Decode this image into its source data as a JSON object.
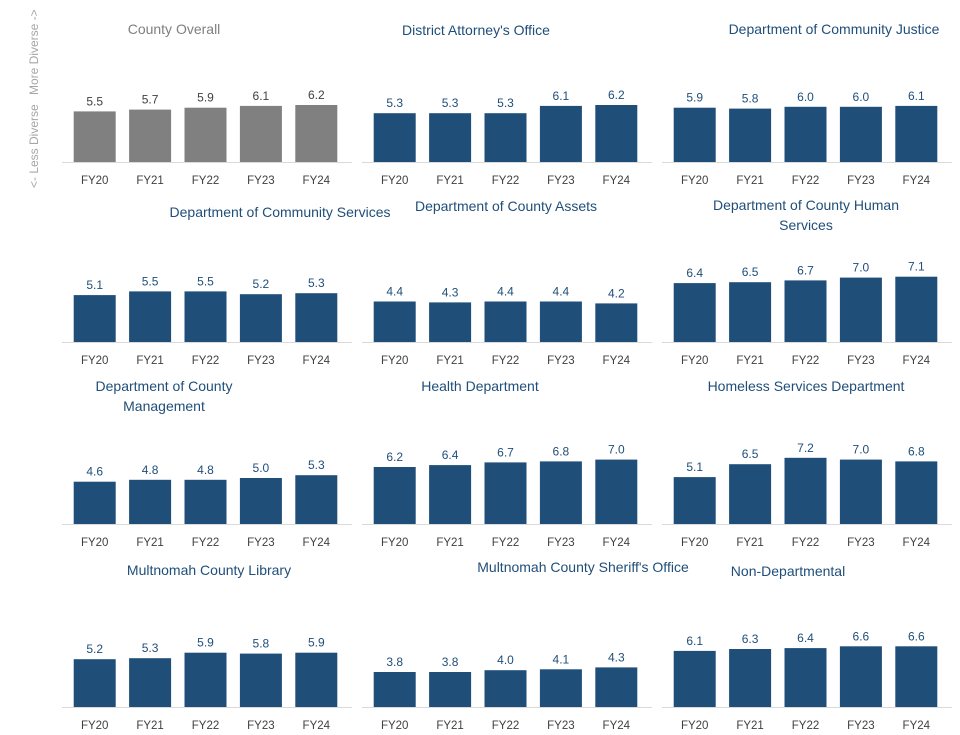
{
  "axis_note": {
    "more": "More Diverse ->",
    "less": "<- Less Diverse"
  },
  "colors": {
    "overall_bar": "#808080",
    "department_bar": "#1f4e79",
    "label_text": "#1f4e79",
    "overall_title": "#7f7f7f",
    "axis_text": "#404040",
    "baseline": "#d9d9d9",
    "side_note": "#a6a6a6"
  },
  "chart_data": [
    {
      "type": "bar",
      "title": "County Overall",
      "categories": [
        "FY20",
        "FY21",
        "FY22",
        "FY23",
        "FY24"
      ],
      "values": [
        5.5,
        5.7,
        5.9,
        6.1,
        6.2
      ],
      "ylim": [
        0,
        8
      ]
    },
    {
      "type": "bar",
      "title": "District Attorney's Office",
      "categories": [
        "FY20",
        "FY21",
        "FY22",
        "FY23",
        "FY24"
      ],
      "values": [
        5.3,
        5.3,
        5.3,
        6.1,
        6.2
      ],
      "ylim": [
        0,
        8
      ]
    },
    {
      "type": "bar",
      "title": "Department of Community Justice",
      "categories": [
        "FY20",
        "FY21",
        "FY22",
        "FY23",
        "FY24"
      ],
      "values": [
        5.9,
        5.8,
        6.0,
        6.0,
        6.1
      ],
      "ylim": [
        0,
        8
      ]
    },
    {
      "type": "bar",
      "title": "Department of Community Services",
      "categories": [
        "FY20",
        "FY21",
        "FY22",
        "FY23",
        "FY24"
      ],
      "values": [
        5.1,
        5.5,
        5.5,
        5.2,
        5.3
      ],
      "ylim": [
        0,
        8
      ]
    },
    {
      "type": "bar",
      "title": "Department of County Assets",
      "categories": [
        "FY20",
        "FY21",
        "FY22",
        "FY23",
        "FY24"
      ],
      "values": [
        4.4,
        4.3,
        4.4,
        4.4,
        4.2
      ],
      "ylim": [
        0,
        8
      ]
    },
    {
      "type": "bar",
      "title": "Department of County Human Services",
      "categories": [
        "FY20",
        "FY21",
        "FY22",
        "FY23",
        "FY24"
      ],
      "values": [
        6.4,
        6.5,
        6.7,
        7.0,
        7.1
      ],
      "ylim": [
        0,
        8
      ]
    },
    {
      "type": "bar",
      "title": "Department of County Management",
      "categories": [
        "FY20",
        "FY21",
        "FY22",
        "FY23",
        "FY24"
      ],
      "values": [
        4.6,
        4.8,
        4.8,
        5.0,
        5.3
      ],
      "ylim": [
        0,
        8
      ]
    },
    {
      "type": "bar",
      "title": "Health Department",
      "categories": [
        "FY20",
        "FY21",
        "FY22",
        "FY23",
        "FY24"
      ],
      "values": [
        6.2,
        6.4,
        6.7,
        6.8,
        7.0
      ],
      "ylim": [
        0,
        8
      ]
    },
    {
      "type": "bar",
      "title": "Homeless Services Department",
      "categories": [
        "FY20",
        "FY21",
        "FY22",
        "FY23",
        "FY24"
      ],
      "values": [
        5.1,
        6.5,
        7.2,
        7.0,
        6.8
      ],
      "ylim": [
        0,
        8
      ]
    },
    {
      "type": "bar",
      "title": "Multnomah County Library",
      "categories": [
        "FY20",
        "FY21",
        "FY22",
        "FY23",
        "FY24"
      ],
      "values": [
        5.2,
        5.3,
        5.9,
        5.8,
        5.9
      ],
      "ylim": [
        0,
        8
      ]
    },
    {
      "type": "bar",
      "title": "Multnomah County Sheriff's Office",
      "categories": [
        "FY20",
        "FY21",
        "FY22",
        "FY23",
        "FY24"
      ],
      "values": [
        3.8,
        3.8,
        4.0,
        4.1,
        4.3
      ],
      "ylim": [
        0,
        8
      ]
    },
    {
      "type": "bar",
      "title": "Non-Departmental",
      "categories": [
        "FY20",
        "FY21",
        "FY22",
        "FY23",
        "FY24"
      ],
      "values": [
        6.1,
        6.3,
        6.4,
        6.6,
        6.6
      ],
      "ylim": [
        0,
        8
      ]
    }
  ]
}
